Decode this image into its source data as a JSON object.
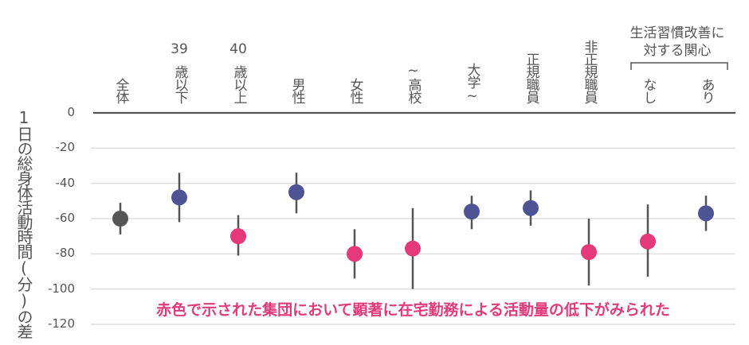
{
  "chart_data": {
    "type": "scatter",
    "subtype": "point-with-error-bars",
    "ylabel": "1日の総身体活動時間(分)の差",
    "ylim": [
      -120,
      0
    ],
    "yticks": [
      0,
      -20,
      -40,
      -60,
      -80,
      -100,
      -120
    ],
    "ytick_labels": [
      "0",
      "-20",
      "-40",
      "-60",
      "-80",
      "-100",
      "-120"
    ],
    "grid": "horizontal",
    "group_header": [
      "生活習慣改善に",
      "対する関心"
    ],
    "annotation": "赤色で示された集団において顕著に在宅勤務による活動量の低下がみられた",
    "colors": {
      "overall": "#555555",
      "not_significant": "#4e5394",
      "significant": "#e6397a",
      "annotation": "#e03c7b"
    },
    "categories": [
      {
        "num": "",
        "label": "全体",
        "value": -60,
        "lower": -69,
        "upper": -51,
        "color": "overall"
      },
      {
        "num": "39",
        "label": "歳以下",
        "value": -48,
        "lower": -62,
        "upper": -34,
        "color": "not_significant"
      },
      {
        "num": "40",
        "label": "歳以上",
        "value": -70,
        "lower": -81,
        "upper": -58,
        "color": "significant"
      },
      {
        "num": "",
        "label": "男性",
        "value": -45,
        "lower": -57,
        "upper": -34,
        "color": "not_significant"
      },
      {
        "num": "",
        "label": "女性",
        "value": -80,
        "lower": -94,
        "upper": -66,
        "color": "significant"
      },
      {
        "num": "",
        "label": "~高校",
        "value": -77,
        "lower": -100,
        "upper": -54,
        "color": "significant"
      },
      {
        "num": "",
        "label": "大学~",
        "value": -56,
        "lower": -66,
        "upper": -47,
        "color": "not_significant"
      },
      {
        "num": "",
        "label": "正規職員",
        "value": -54,
        "lower": -64,
        "upper": -44,
        "color": "not_significant"
      },
      {
        "num": "",
        "label": "非正規職員",
        "value": -79,
        "lower": -98,
        "upper": -60,
        "color": "significant"
      },
      {
        "num": "",
        "label": "なし",
        "value": -73,
        "lower": -93,
        "upper": -52,
        "color": "significant"
      },
      {
        "num": "",
        "label": "あり",
        "value": -57,
        "lower": -67,
        "upper": -47,
        "color": "not_significant"
      }
    ]
  }
}
